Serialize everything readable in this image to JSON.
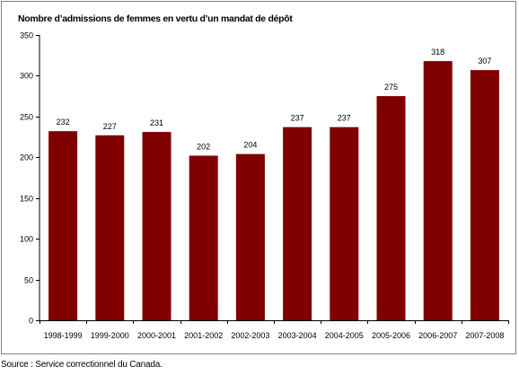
{
  "chart_data": {
    "type": "bar",
    "title": "Nombre d’admissions de femmes en vertu d’un mandat de dépôt",
    "xlabel": "",
    "ylabel": "",
    "categories": [
      "1998-1999",
      "1999-2000",
      "2000-2001",
      "2001-2002",
      "2002-2003",
      "2003-2004",
      "2004-2005",
      "2005-2006",
      "2006-2007",
      "2007-2008"
    ],
    "values": [
      232,
      227,
      231,
      202,
      204,
      237,
      237,
      275,
      318,
      307
    ],
    "ylim": [
      0,
      350
    ],
    "yticks": [
      0,
      50,
      100,
      150,
      200,
      250,
      300,
      350
    ],
    "grid": false,
    "legend": "none",
    "bar_color": "#800000",
    "data_labels": true
  },
  "source": "Source : Service correctionnel du Canada."
}
